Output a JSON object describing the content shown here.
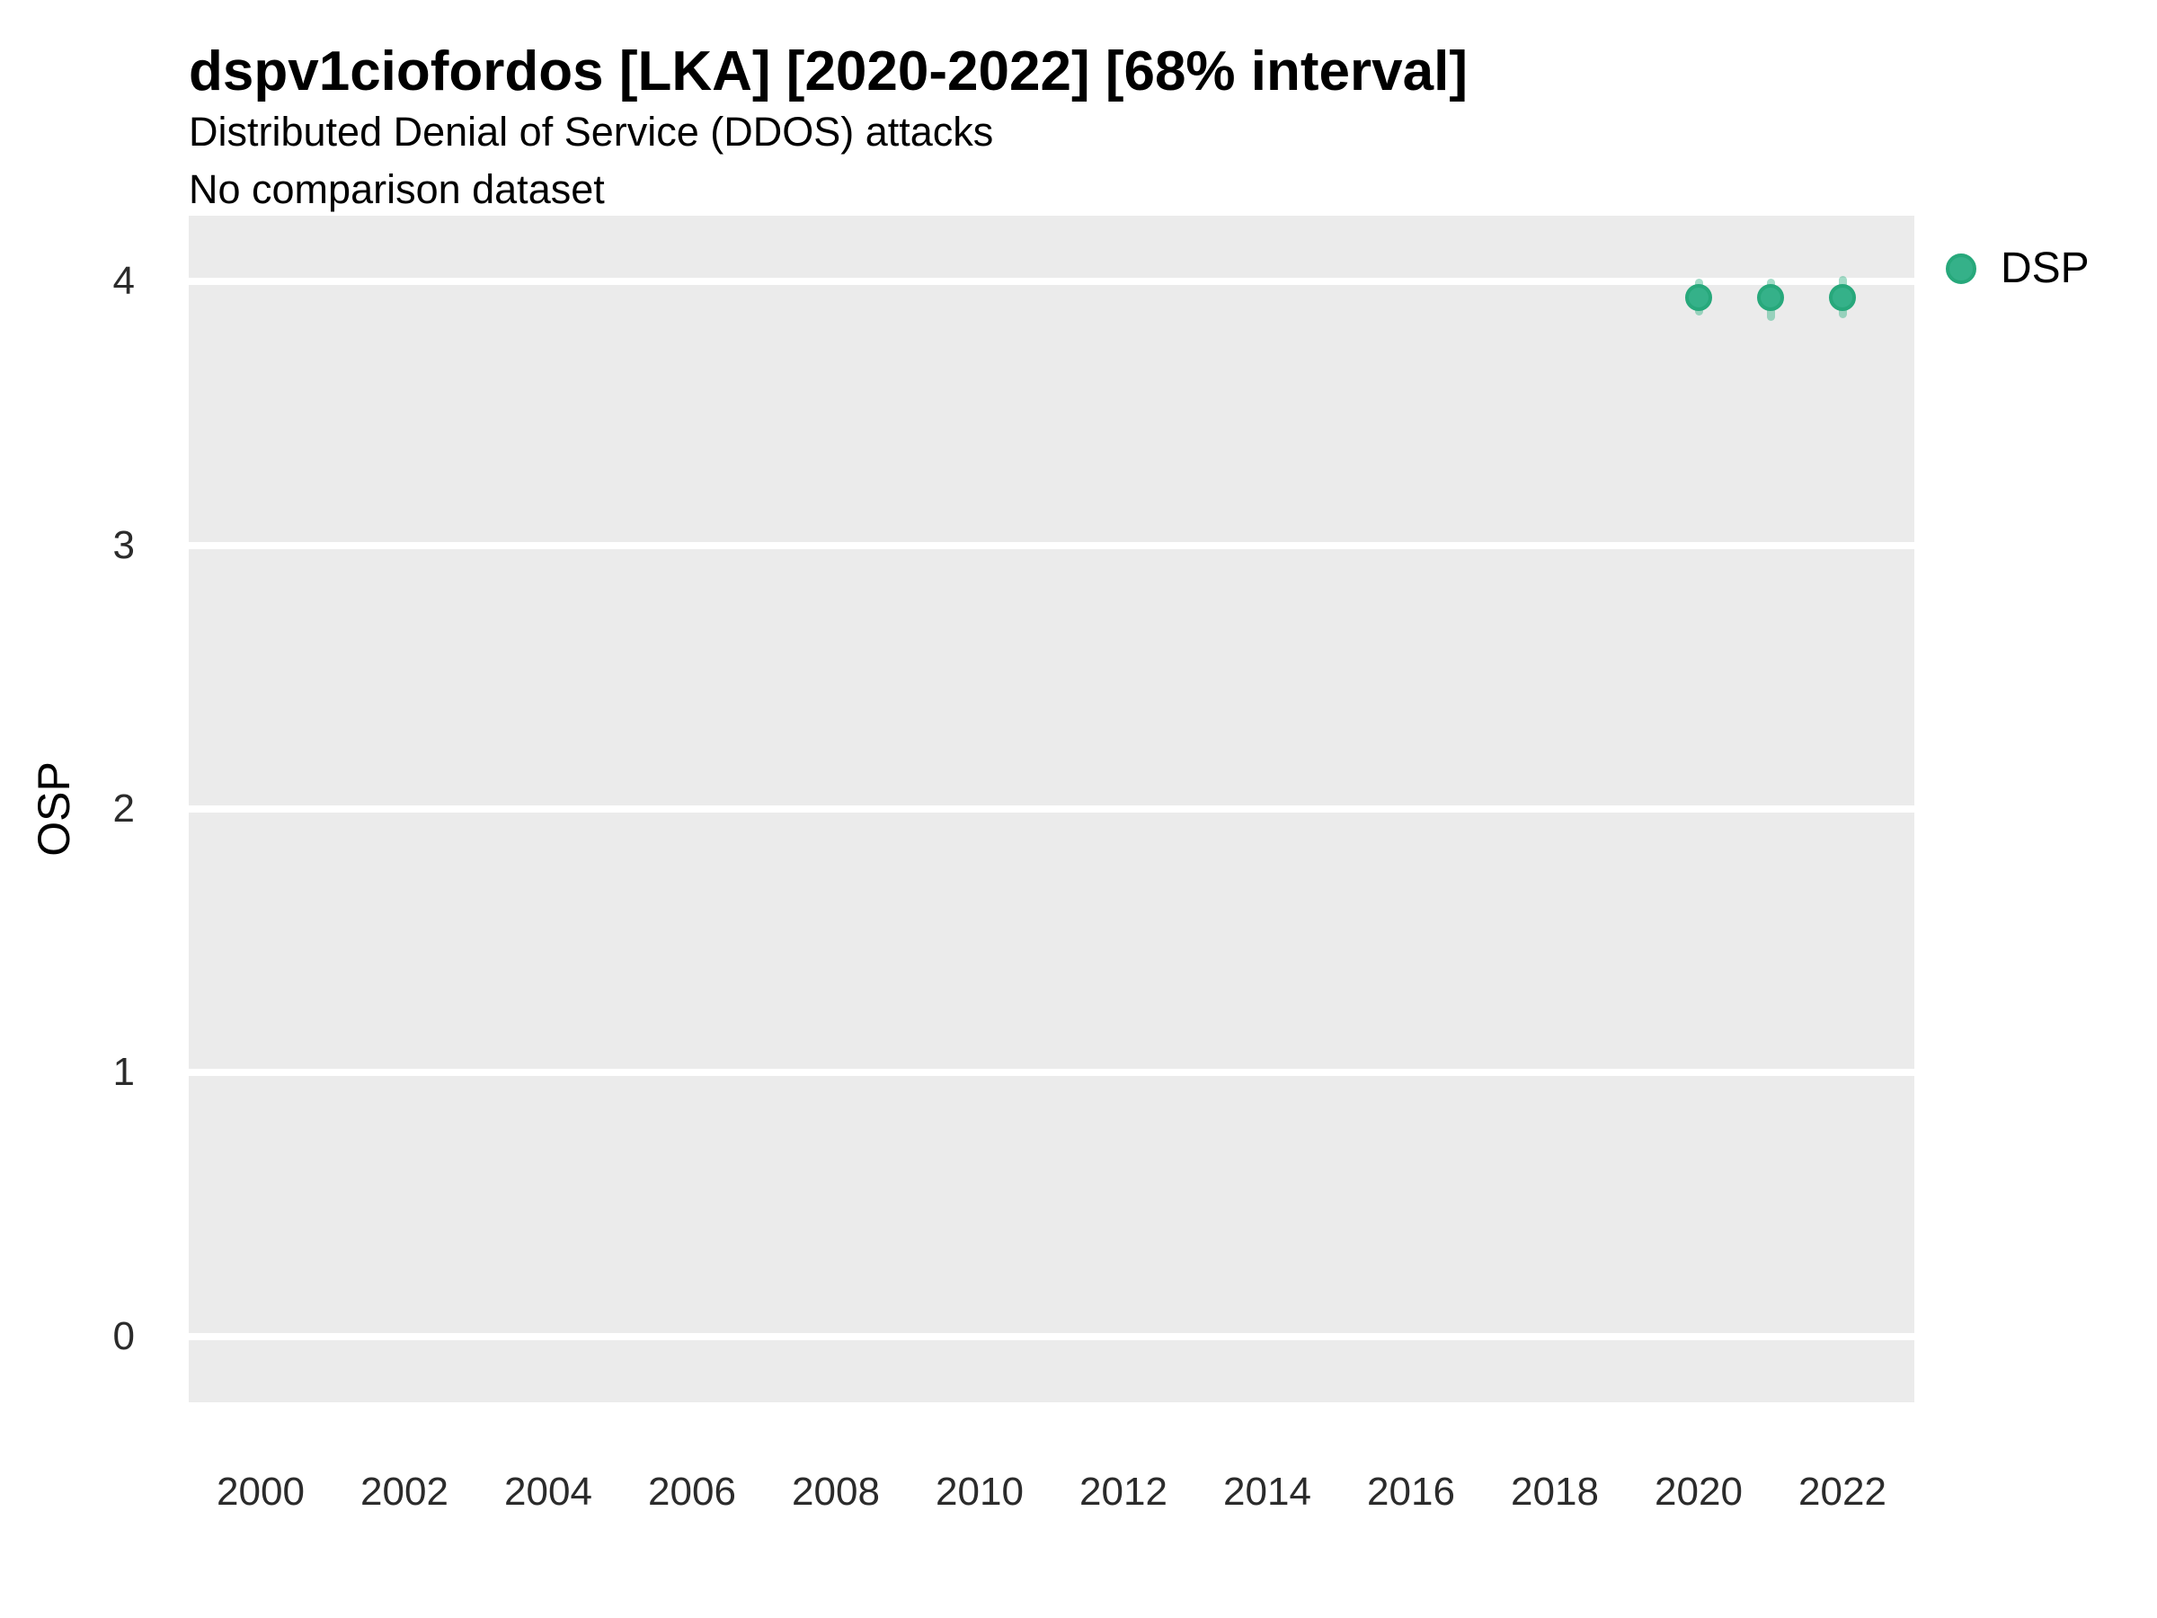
{
  "header": {
    "title": "dspv1ciofordos [LKA] [2020-2022] [68% interval]",
    "subtitle": "Distributed Denial of Service (DDOS) attacks",
    "note": "No comparison dataset"
  },
  "colors": {
    "background": "#ffffff",
    "panel": "#ebebeb",
    "grid": "#ffffff",
    "tick_text": "#2b2b2b",
    "title_text": "#000000",
    "point_fill": "#35b189",
    "point_edge": "#27a87b",
    "interval_line": "rgba(49,177,131,0.45)"
  },
  "chart_data": {
    "type": "scatter",
    "title": "dspv1ciofordos [LKA] [2020-2022] [68% interval]",
    "subtitle": "Distributed Denial of Service (DDOS) attacks",
    "note": "No comparison dataset",
    "xlabel": "",
    "ylabel": "OSP",
    "interval_level": "68%",
    "legend_position": "right",
    "grid": "major horizontal white gridlines on gray panel",
    "x_ticks": [
      2000,
      2002,
      2004,
      2006,
      2008,
      2010,
      2012,
      2014,
      2016,
      2018,
      2020,
      2022
    ],
    "y_ticks": [
      0,
      1,
      2,
      3,
      4
    ],
    "xlim": [
      1999,
      2023
    ],
    "ylim": [
      -0.25,
      4.25
    ],
    "series": [
      {
        "name": "DSP",
        "color": "#35b189",
        "edge_color": "#27a87b",
        "interval_color": "rgba(49,177,131,0.45)",
        "points": [
          {
            "x": 2020,
            "y": 3.94,
            "y_lo": 3.87,
            "y_hi": 4.01
          },
          {
            "x": 2021,
            "y": 3.94,
            "y_lo": 3.85,
            "y_hi": 4.01
          },
          {
            "x": 2022,
            "y": 3.94,
            "y_lo": 3.86,
            "y_hi": 4.02
          }
        ]
      }
    ]
  }
}
